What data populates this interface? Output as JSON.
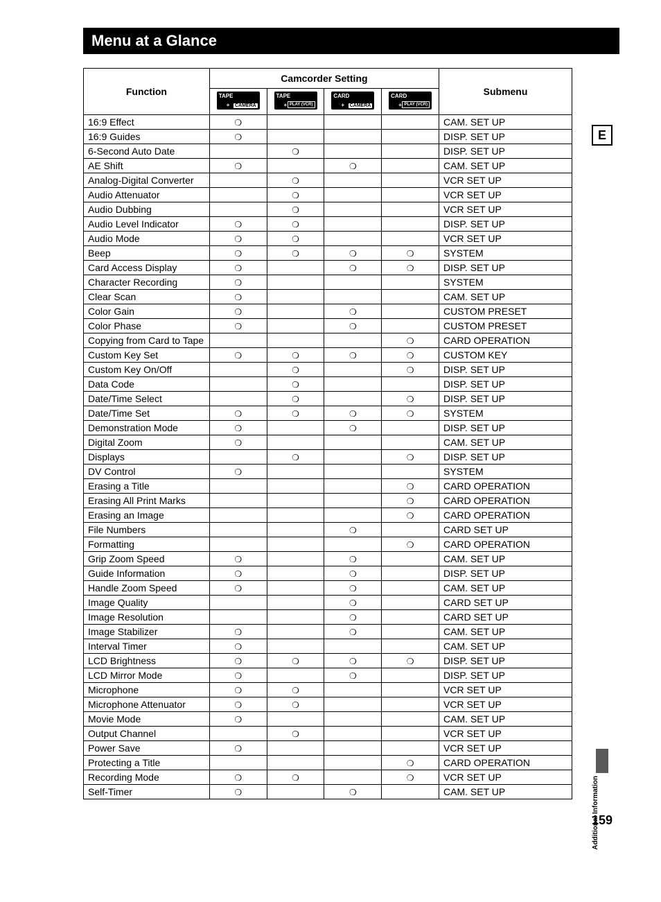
{
  "title": "Menu at a Glance",
  "sidebar_letter": "E",
  "sidebar_text": "Additional\nInformation",
  "page_number": "159",
  "headers": {
    "function": "Function",
    "setting": "Camcorder Setting",
    "submenu": "Submenu"
  },
  "mode_icons": [
    {
      "top": "TAPE",
      "plus": "+",
      "bottom": "CAMERA",
      "kind": "cam"
    },
    {
      "top": "TAPE",
      "plus": "+",
      "bottom": "PLAY\n(VCR)",
      "kind": "play"
    },
    {
      "top": "CARD",
      "plus": "+",
      "bottom": "CAMERA",
      "kind": "cam"
    },
    {
      "top": "CARD",
      "plus": "+",
      "bottom": "PLAY\n(VCR)",
      "kind": "play"
    }
  ],
  "mark": "❍",
  "rows": [
    {
      "fn": "16:9 Effect",
      "m": [
        1,
        0,
        0,
        0
      ],
      "sub": "CAM. SET UP"
    },
    {
      "fn": "16:9 Guides",
      "m": [
        1,
        0,
        0,
        0
      ],
      "sub": "DISP. SET UP"
    },
    {
      "fn": "6-Second Auto Date",
      "m": [
        0,
        1,
        0,
        0
      ],
      "sub": "DISP. SET UP"
    },
    {
      "fn": "AE Shift",
      "m": [
        1,
        0,
        1,
        0
      ],
      "sub": "CAM. SET UP"
    },
    {
      "fn": "Analog-Digital Converter",
      "m": [
        0,
        1,
        0,
        0
      ],
      "sub": "VCR SET UP"
    },
    {
      "fn": "Audio Attenuator",
      "m": [
        0,
        1,
        0,
        0
      ],
      "sub": "VCR SET UP"
    },
    {
      "fn": "Audio Dubbing",
      "m": [
        0,
        1,
        0,
        0
      ],
      "sub": "VCR SET UP"
    },
    {
      "fn": "Audio Level Indicator",
      "m": [
        1,
        1,
        0,
        0
      ],
      "sub": "DISP. SET UP"
    },
    {
      "fn": "Audio Mode",
      "m": [
        1,
        1,
        0,
        0
      ],
      "sub": "VCR SET UP"
    },
    {
      "fn": "Beep",
      "m": [
        1,
        1,
        1,
        1
      ],
      "sub": "SYSTEM"
    },
    {
      "fn": "Card Access Display",
      "m": [
        1,
        0,
        1,
        1
      ],
      "sub": "DISP. SET UP"
    },
    {
      "fn": "Character Recording",
      "m": [
        1,
        0,
        0,
        0
      ],
      "sub": "SYSTEM"
    },
    {
      "fn": "Clear Scan",
      "m": [
        1,
        0,
        0,
        0
      ],
      "sub": "CAM. SET UP"
    },
    {
      "fn": "Color Gain",
      "m": [
        1,
        0,
        1,
        0
      ],
      "sub": "CUSTOM PRESET"
    },
    {
      "fn": "Color Phase",
      "m": [
        1,
        0,
        1,
        0
      ],
      "sub": "CUSTOM PRESET"
    },
    {
      "fn": "Copying from Card to Tape",
      "m": [
        0,
        0,
        0,
        1
      ],
      "sub": "CARD OPERATION"
    },
    {
      "fn": "Custom Key Set",
      "m": [
        1,
        1,
        1,
        1
      ],
      "sub": "CUSTOM KEY"
    },
    {
      "fn": "Custom Key On/Off",
      "m": [
        0,
        1,
        0,
        1
      ],
      "sub": "DISP. SET UP"
    },
    {
      "fn": "Data Code",
      "m": [
        0,
        1,
        0,
        0
      ],
      "sub": "DISP. SET UP"
    },
    {
      "fn": "Date/Time Select",
      "m": [
        0,
        1,
        0,
        1
      ],
      "sub": "DISP. SET UP"
    },
    {
      "fn": "Date/Time Set",
      "m": [
        1,
        1,
        1,
        1
      ],
      "sub": "SYSTEM"
    },
    {
      "fn": "Demonstration Mode",
      "m": [
        1,
        0,
        1,
        0
      ],
      "sub": "DISP. SET UP"
    },
    {
      "fn": "Digital Zoom",
      "m": [
        1,
        0,
        0,
        0
      ],
      "sub": "CAM. SET UP"
    },
    {
      "fn": "Displays",
      "m": [
        0,
        1,
        0,
        1
      ],
      "sub": "DISP. SET UP"
    },
    {
      "fn": "DV Control",
      "m": [
        1,
        0,
        0,
        0
      ],
      "sub": "SYSTEM"
    },
    {
      "fn": "Erasing a Title",
      "m": [
        0,
        0,
        0,
        1
      ],
      "sub": "CARD OPERATION"
    },
    {
      "fn": "Erasing All Print Marks",
      "m": [
        0,
        0,
        0,
        1
      ],
      "sub": "CARD OPERATION"
    },
    {
      "fn": "Erasing an Image",
      "m": [
        0,
        0,
        0,
        1
      ],
      "sub": "CARD OPERATION"
    },
    {
      "fn": "File Numbers",
      "m": [
        0,
        0,
        1,
        0
      ],
      "sub": "CARD SET UP"
    },
    {
      "fn": "Formatting",
      "m": [
        0,
        0,
        0,
        1
      ],
      "sub": "CARD OPERATION"
    },
    {
      "fn": "Grip Zoom Speed",
      "m": [
        1,
        0,
        1,
        0
      ],
      "sub": "CAM. SET UP"
    },
    {
      "fn": "Guide Information",
      "m": [
        1,
        0,
        1,
        0
      ],
      "sub": "DISP. SET UP"
    },
    {
      "fn": "Handle Zoom Speed",
      "m": [
        1,
        0,
        1,
        0
      ],
      "sub": "CAM. SET UP"
    },
    {
      "fn": "Image Quality",
      "m": [
        0,
        0,
        1,
        0
      ],
      "sub": "CARD SET UP"
    },
    {
      "fn": "Image Resolution",
      "m": [
        0,
        0,
        1,
        0
      ],
      "sub": "CARD SET UP"
    },
    {
      "fn": "Image Stabilizer",
      "m": [
        1,
        0,
        1,
        0
      ],
      "sub": "CAM. SET UP"
    },
    {
      "fn": "Interval Timer",
      "m": [
        1,
        0,
        0,
        0
      ],
      "sub": "CAM. SET UP"
    },
    {
      "fn": "LCD Brightness",
      "m": [
        1,
        1,
        1,
        1
      ],
      "sub": "DISP. SET UP"
    },
    {
      "fn": "LCD Mirror Mode",
      "m": [
        1,
        0,
        1,
        0
      ],
      "sub": "DISP. SET UP"
    },
    {
      "fn": "Microphone",
      "m": [
        1,
        1,
        0,
        0
      ],
      "sub": "VCR SET UP"
    },
    {
      "fn": "Microphone Attenuator",
      "m": [
        1,
        1,
        0,
        0
      ],
      "sub": "VCR SET UP"
    },
    {
      "fn": "Movie Mode",
      "m": [
        1,
        0,
        0,
        0
      ],
      "sub": "CAM. SET UP"
    },
    {
      "fn": "Output Channel",
      "m": [
        0,
        1,
        0,
        0
      ],
      "sub": "VCR SET UP"
    },
    {
      "fn": "Power Save",
      "m": [
        1,
        0,
        0,
        0
      ],
      "sub": "VCR SET UP"
    },
    {
      "fn": "Protecting a Title",
      "m": [
        0,
        0,
        0,
        1
      ],
      "sub": "CARD OPERATION"
    },
    {
      "fn": "Recording Mode",
      "m": [
        1,
        1,
        0,
        1
      ],
      "sub": "VCR SET UP"
    },
    {
      "fn": "Self-Timer",
      "m": [
        1,
        0,
        1,
        0
      ],
      "sub": "CAM. SET UP"
    }
  ]
}
